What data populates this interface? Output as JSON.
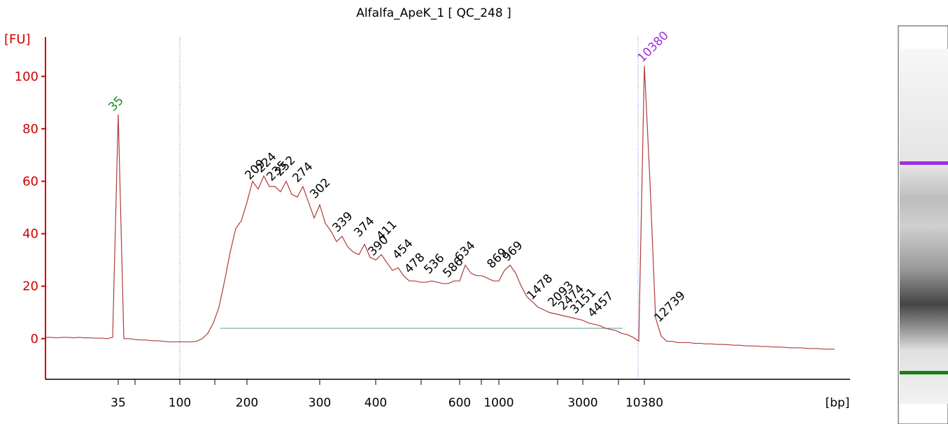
{
  "chart_data": {
    "type": "line",
    "title": "Alfalfa_ApeK_1  [ QC_248 ]",
    "y_label": "[FU]",
    "x_label": "[bp]",
    "axis_color": "#d00000",
    "color": "#b03a3a",
    "ylim": [
      -15.5,
      115
    ],
    "yticks": [
      0,
      20,
      40,
      60,
      80,
      100
    ],
    "categories": [
      null,
      null,
      null,
      null,
      null,
      null,
      null,
      null,
      null,
      null,
      null,
      null,
      null,
      "35",
      null,
      null,
      null,
      null,
      null,
      null,
      null,
      null,
      null,
      null,
      "100",
      null,
      null,
      null,
      null,
      null,
      null,
      null,
      null,
      null,
      null,
      null,
      "200",
      null,
      null,
      null,
      null,
      null,
      null,
      null,
      null,
      null,
      null,
      null,
      null,
      "300",
      null,
      null,
      null,
      null,
      null,
      null,
      null,
      null,
      null,
      "400",
      null,
      null,
      null,
      null,
      null,
      null,
      null,
      null,
      null,
      null,
      null,
      null,
      null,
      null,
      "600",
      null,
      null,
      null,
      null,
      null,
      null,
      "1000",
      null,
      null,
      null,
      null,
      null,
      null,
      null,
      null,
      null,
      null,
      null,
      null,
      null,
      null,
      "3000",
      null,
      null,
      null,
      null,
      null,
      null,
      null,
      null,
      null,
      null,
      "10380",
      null,
      null,
      null,
      null,
      null,
      null,
      null,
      null,
      null,
      null,
      null,
      null,
      null,
      null,
      null,
      null,
      null,
      null,
      null,
      null,
      null,
      null,
      null,
      null,
      null,
      null,
      null,
      null,
      null,
      null,
      null,
      null,
      null,
      null
    ],
    "values": [
      0.5,
      0.5,
      0.3,
      0.5,
      0.5,
      0.3,
      0.5,
      0.3,
      0.3,
      0.2,
      0.2,
      0,
      0.5,
      85.5,
      0,
      0,
      -0.3,
      -0.5,
      -0.5,
      -0.8,
      -0.8,
      -1,
      -1.2,
      -1.2,
      -1.2,
      -1.2,
      -1.2,
      -1,
      0,
      2,
      6,
      12,
      22,
      33,
      42,
      45,
      52,
      60,
      57,
      62,
      58,
      58,
      56,
      60,
      55,
      54,
      58,
      52,
      46,
      51,
      44,
      41,
      37,
      39,
      35,
      33,
      32,
      36,
      31,
      30,
      32,
      29,
      26,
      27,
      24,
      22,
      22,
      21.5,
      21.5,
      22,
      21.5,
      21,
      21,
      22,
      22,
      28,
      25,
      24,
      24,
      23,
      22,
      22,
      26,
      28,
      25,
      20,
      16,
      14,
      12,
      11,
      10,
      9.5,
      9,
      8.5,
      8,
      7.5,
      7,
      6,
      5.5,
      5,
      4,
      3.5,
      3,
      2,
      1.5,
      0.5,
      -1,
      104,
      60,
      8,
      1,
      -1,
      -1,
      -1.5,
      -1.5,
      -1.5,
      -1.8,
      -1.8,
      -2,
      -2,
      -2.2,
      -2.2,
      -2.3,
      -2.5,
      -2.5,
      -2.7,
      -2.8,
      -2.8,
      -3,
      -3,
      -3.2,
      -3.2,
      -3.3,
      -3.5,
      -3.5,
      -3.5,
      -3.7,
      -3.8,
      -3.8,
      -4,
      -4,
      -4
    ],
    "annotations": [
      {
        "text": "35",
        "color": "#1a8a1a"
      },
      {
        "text": "209",
        "color": "#000000"
      },
      {
        "text": "224",
        "color": "#000000"
      },
      {
        "text": "235",
        "color": "#000000"
      },
      {
        "text": "252",
        "color": "#000000"
      },
      {
        "text": "274",
        "color": "#000000"
      },
      {
        "text": "302",
        "color": "#000000"
      },
      {
        "text": "339",
        "color": "#000000"
      },
      {
        "text": "374",
        "color": "#000000"
      },
      {
        "text": "390",
        "color": "#000000"
      },
      {
        "text": "411",
        "color": "#000000"
      },
      {
        "text": "454",
        "color": "#000000"
      },
      {
        "text": "478",
        "color": "#000000"
      },
      {
        "text": "536",
        "color": "#000000"
      },
      {
        "text": "586",
        "color": "#000000"
      },
      {
        "text": "634",
        "color": "#000000"
      },
      {
        "text": "869",
        "color": "#000000"
      },
      {
        "text": "969",
        "color": "#000000"
      },
      {
        "text": "1478",
        "color": "#000000"
      },
      {
        "text": "2093",
        "color": "#000000"
      },
      {
        "text": "2474",
        "color": "#000000"
      },
      {
        "text": "3151",
        "color": "#000000"
      },
      {
        "text": "4457",
        "color": "#000000"
      },
      {
        "text": "12739",
        "color": "#000000"
      },
      {
        "text": "10380",
        "color": "#9b30e0"
      }
    ]
  }
}
